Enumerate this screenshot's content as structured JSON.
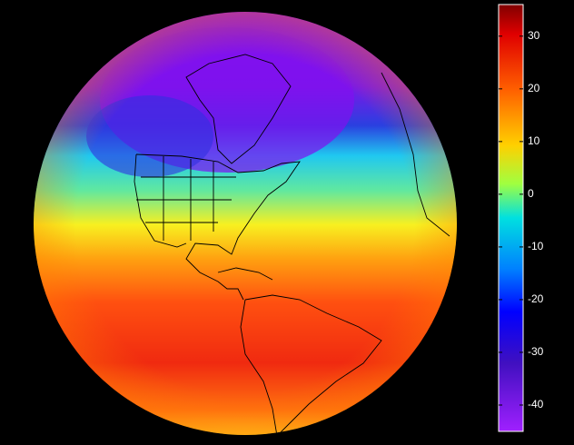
{
  "map": {
    "colorbar": {
      "lim": [
        -45,
        36
      ],
      "ticks": [
        30,
        20,
        10,
        0,
        -10,
        -20,
        -30,
        -40
      ]
    }
  }
}
